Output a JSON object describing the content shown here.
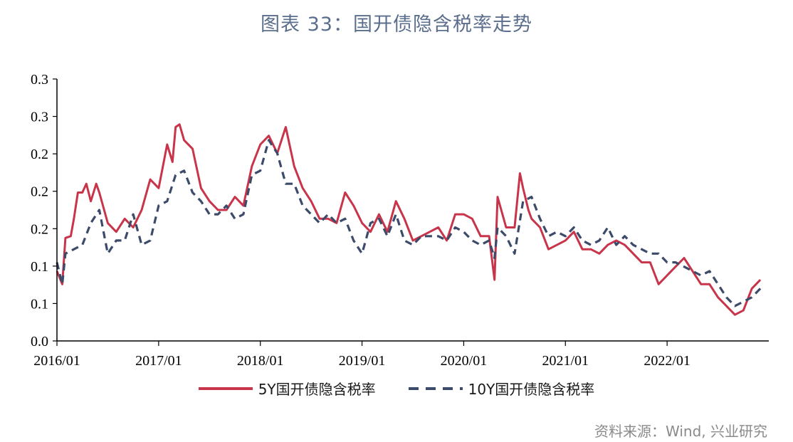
{
  "title": "图表 33：国开债隐含税率走势",
  "source": "资料来源：Wind, 兴业研究",
  "colors": {
    "series_5y": "#c8344a",
    "series_10y": "#3d4b6a",
    "title": "#5b6e8c",
    "axis": "#000000"
  },
  "chart_data": {
    "type": "line",
    "title": "",
    "xlabel": "",
    "ylabel": "",
    "x_range": [
      "2016/01",
      "2022/12"
    ],
    "x_tick_labels": [
      "2016/01",
      "2017/01",
      "2018/01",
      "2019/01",
      "2020/01",
      "2021/01",
      "2022/01"
    ],
    "y_tick_labels": [
      "0.0",
      "0.1",
      "0.1",
      "0.2",
      "0.2",
      "0.2",
      "0.3",
      "0.3"
    ],
    "ylim": [
      0,
      0.3
    ],
    "grid": false,
    "legend_position": "bottom",
    "series": [
      {
        "name": "5Y国开债隐含税率",
        "style": "solid",
        "points": [
          [
            "2016/01",
            0.08
          ],
          [
            "2016/01/20",
            0.065
          ],
          [
            "2016/02",
            0.118
          ],
          [
            "2016/02/20",
            0.12
          ],
          [
            "2016/03",
            0.14
          ],
          [
            "2016/03/15",
            0.17
          ],
          [
            "2016/04",
            0.17
          ],
          [
            "2016/04/15",
            0.18
          ],
          [
            "2016/05",
            0.16
          ],
          [
            "2016/05/20",
            0.18
          ],
          [
            "2016/06",
            0.17
          ],
          [
            "2016/07",
            0.135
          ],
          [
            "2016/08",
            0.125
          ],
          [
            "2016/09",
            0.14
          ],
          [
            "2016/10",
            0.13
          ],
          [
            "2016/11",
            0.15
          ],
          [
            "2016/12",
            0.185
          ],
          [
            "2017/01",
            0.175
          ],
          [
            "2017/02",
            0.225
          ],
          [
            "2017/02/20",
            0.205
          ],
          [
            "2017/03",
            0.245
          ],
          [
            "2017/03/15",
            0.248
          ],
          [
            "2017/04",
            0.23
          ],
          [
            "2017/05",
            0.22
          ],
          [
            "2017/06",
            0.175
          ],
          [
            "2017/07",
            0.16
          ],
          [
            "2017/08",
            0.15
          ],
          [
            "2017/09",
            0.15
          ],
          [
            "2017/10",
            0.165
          ],
          [
            "2017/11",
            0.155
          ],
          [
            "2017/12",
            0.2
          ],
          [
            "2018/01",
            0.225
          ],
          [
            "2018/02",
            0.235
          ],
          [
            "2018/03",
            0.215
          ],
          [
            "2018/04",
            0.245
          ],
          [
            "2018/05",
            0.2
          ],
          [
            "2018/06",
            0.175
          ],
          [
            "2018/07",
            0.16
          ],
          [
            "2018/08",
            0.14
          ],
          [
            "2018/09",
            0.14
          ],
          [
            "2018/10",
            0.135
          ],
          [
            "2018/11",
            0.17
          ],
          [
            "2018/12",
            0.155
          ],
          [
            "2019/01",
            0.135
          ],
          [
            "2019/02",
            0.125
          ],
          [
            "2019/03",
            0.145
          ],
          [
            "2019/04",
            0.125
          ],
          [
            "2019/05",
            0.16
          ],
          [
            "2019/06",
            0.14
          ],
          [
            "2019/07",
            0.115
          ],
          [
            "2019/08",
            0.12
          ],
          [
            "2019/09",
            0.125
          ],
          [
            "2019/10",
            0.13
          ],
          [
            "2019/11",
            0.115
          ],
          [
            "2019/12",
            0.145
          ],
          [
            "2020/01",
            0.145
          ],
          [
            "2020/02",
            0.14
          ],
          [
            "2020/03",
            0.12
          ],
          [
            "2020/04",
            0.12
          ],
          [
            "2020/04/20",
            0.07
          ],
          [
            "2020/05",
            0.165
          ],
          [
            "2020/06",
            0.13
          ],
          [
            "2020/07",
            0.13
          ],
          [
            "2020/07/20",
            0.192
          ],
          [
            "2020/08",
            0.175
          ],
          [
            "2020/08/20",
            0.15
          ],
          [
            "2020/09",
            0.14
          ],
          [
            "2020/10",
            0.13
          ],
          [
            "2020/11",
            0.105
          ],
          [
            "2020/12",
            0.11
          ],
          [
            "2021/01",
            0.115
          ],
          [
            "2021/02",
            0.125
          ],
          [
            "2021/03",
            0.105
          ],
          [
            "2021/04",
            0.105
          ],
          [
            "2021/05",
            0.1
          ],
          [
            "2021/06",
            0.11
          ],
          [
            "2021/07",
            0.115
          ],
          [
            "2021/08",
            0.11
          ],
          [
            "2021/09",
            0.1
          ],
          [
            "2021/10",
            0.09
          ],
          [
            "2021/11",
            0.09
          ],
          [
            "2021/12",
            0.065
          ],
          [
            "2022/01",
            0.075
          ],
          [
            "2022/02",
            0.085
          ],
          [
            "2022/03",
            0.095
          ],
          [
            "2022/04",
            0.08
          ],
          [
            "2022/05",
            0.065
          ],
          [
            "2022/06",
            0.065
          ],
          [
            "2022/07",
            0.05
          ],
          [
            "2022/08",
            0.04
          ],
          [
            "2022/09",
            0.03
          ],
          [
            "2022/10",
            0.035
          ],
          [
            "2022/11",
            0.06
          ],
          [
            "2022/12",
            0.07
          ]
        ]
      },
      {
        "name": "10Y国开债隐含税率",
        "style": "dashed",
        "points": [
          [
            "2016/01",
            0.09
          ],
          [
            "2016/01/20",
            0.065
          ],
          [
            "2016/02",
            0.1
          ],
          [
            "2016/03",
            0.105
          ],
          [
            "2016/04",
            0.11
          ],
          [
            "2016/05",
            0.135
          ],
          [
            "2016/06",
            0.15
          ],
          [
            "2016/07",
            0.1
          ],
          [
            "2016/08",
            0.115
          ],
          [
            "2016/09",
            0.115
          ],
          [
            "2016/10",
            0.145
          ],
          [
            "2016/11",
            0.11
          ],
          [
            "2016/12",
            0.115
          ],
          [
            "2017/01",
            0.155
          ],
          [
            "2017/02",
            0.16
          ],
          [
            "2017/03",
            0.19
          ],
          [
            "2017/04",
            0.195
          ],
          [
            "2017/05",
            0.17
          ],
          [
            "2017/06",
            0.16
          ],
          [
            "2017/07",
            0.145
          ],
          [
            "2017/08",
            0.145
          ],
          [
            "2017/09",
            0.155
          ],
          [
            "2017/10",
            0.14
          ],
          [
            "2017/11",
            0.145
          ],
          [
            "2017/12",
            0.19
          ],
          [
            "2018/01",
            0.195
          ],
          [
            "2018/02",
            0.23
          ],
          [
            "2018/03",
            0.215
          ],
          [
            "2018/04",
            0.18
          ],
          [
            "2018/05",
            0.18
          ],
          [
            "2018/06",
            0.155
          ],
          [
            "2018/07",
            0.145
          ],
          [
            "2018/08",
            0.135
          ],
          [
            "2018/09",
            0.145
          ],
          [
            "2018/10",
            0.135
          ],
          [
            "2018/11",
            0.14
          ],
          [
            "2018/12",
            0.115
          ],
          [
            "2019/01",
            0.1
          ],
          [
            "2019/02",
            0.135
          ],
          [
            "2019/03",
            0.14
          ],
          [
            "2019/04",
            0.12
          ],
          [
            "2019/05",
            0.145
          ],
          [
            "2019/06",
            0.115
          ],
          [
            "2019/07",
            0.11
          ],
          [
            "2019/08",
            0.12
          ],
          [
            "2019/09",
            0.12
          ],
          [
            "2019/10",
            0.12
          ],
          [
            "2019/11",
            0.115
          ],
          [
            "2019/12",
            0.13
          ],
          [
            "2020/01",
            0.125
          ],
          [
            "2020/02",
            0.115
          ],
          [
            "2020/03",
            0.11
          ],
          [
            "2020/04",
            0.115
          ],
          [
            "2020/04/20",
            0.095
          ],
          [
            "2020/05",
            0.13
          ],
          [
            "2020/06",
            0.12
          ],
          [
            "2020/07",
            0.1
          ],
          [
            "2020/08",
            0.16
          ],
          [
            "2020/09",
            0.165
          ],
          [
            "2020/10",
            0.14
          ],
          [
            "2020/11",
            0.12
          ],
          [
            "2020/12",
            0.125
          ],
          [
            "2021/01",
            0.12
          ],
          [
            "2021/02",
            0.13
          ],
          [
            "2021/03",
            0.115
          ],
          [
            "2021/04",
            0.11
          ],
          [
            "2021/05",
            0.115
          ],
          [
            "2021/06",
            0.13
          ],
          [
            "2021/07",
            0.11
          ],
          [
            "2021/08",
            0.12
          ],
          [
            "2021/09",
            0.11
          ],
          [
            "2021/10",
            0.105
          ],
          [
            "2021/11",
            0.1
          ],
          [
            "2021/12",
            0.1
          ],
          [
            "2022/01",
            0.09
          ],
          [
            "2022/02",
            0.09
          ],
          [
            "2022/03",
            0.085
          ],
          [
            "2022/04",
            0.08
          ],
          [
            "2022/05",
            0.075
          ],
          [
            "2022/06",
            0.08
          ],
          [
            "2022/07",
            0.065
          ],
          [
            "2022/08",
            0.05
          ],
          [
            "2022/09",
            0.04
          ],
          [
            "2022/10",
            0.045
          ],
          [
            "2022/11",
            0.05
          ],
          [
            "2022/12",
            0.06
          ]
        ]
      }
    ]
  }
}
